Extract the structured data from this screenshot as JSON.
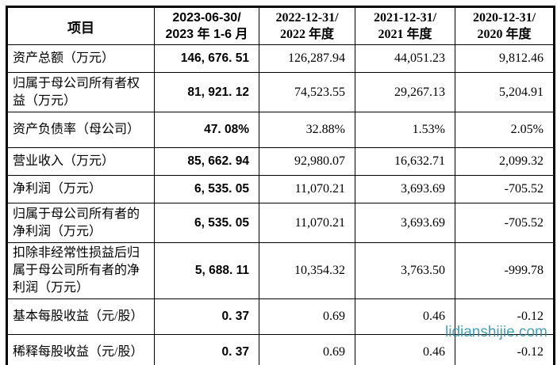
{
  "watermark": {
    "text": "lidianshijie.com",
    "color": "#2e93a8"
  },
  "table": {
    "header": {
      "item_label": "项目",
      "periods": [
        {
          "line1": "2023-06-30/",
          "line2": "2023 年 1-6 月"
        },
        {
          "line1": "2022-12-31/",
          "line2": "2022 年度"
        },
        {
          "line1": "2021-12-31/",
          "line2": "2021 年度"
        },
        {
          "line1": "2020-12-31/",
          "line2": "2020 年度"
        }
      ]
    },
    "rows": [
      {
        "label": "资产总额（万元）",
        "values": [
          "146, 676. 51",
          "126,287.94",
          "44,051.23",
          "9,812.46"
        ]
      },
      {
        "label": "归属于母公司所有者权益（万元）",
        "values": [
          "81, 921. 12",
          "74,523.55",
          "29,267.13",
          "5,204.91"
        ]
      },
      {
        "label": "资产负债率（母公司）",
        "values": [
          "47. 08%",
          "32.88%",
          "1.53%",
          "2.05%"
        ]
      },
      {
        "label": "营业收入（万元）",
        "values": [
          "85, 662. 94",
          "92,980.07",
          "16,632.71",
          "2,099.32"
        ]
      },
      {
        "label": "净利润（万元）",
        "values": [
          "6, 535. 05",
          "11,070.21",
          "3,693.69",
          "-705.52"
        ]
      },
      {
        "label": "归属于母公司所有者的净利润（万元）",
        "values": [
          "6, 535. 05",
          "11,070.21",
          "3,693.69",
          "-705.52"
        ]
      },
      {
        "label": "扣除非经常性损益后归属于母公司所有者的净利润（万元）",
        "values": [
          "5, 688. 11",
          "10,354.32",
          "3,763.50",
          "-999.78"
        ]
      },
      {
        "label": "基本每股收益（元/股）",
        "values": [
          "0. 37",
          "0.69",
          "0.46",
          "-0.12"
        ]
      },
      {
        "label": "稀释每股收益（元/股）",
        "values": [
          "0. 37",
          "0.69",
          "0.46",
          "-0.12"
        ]
      }
    ]
  }
}
